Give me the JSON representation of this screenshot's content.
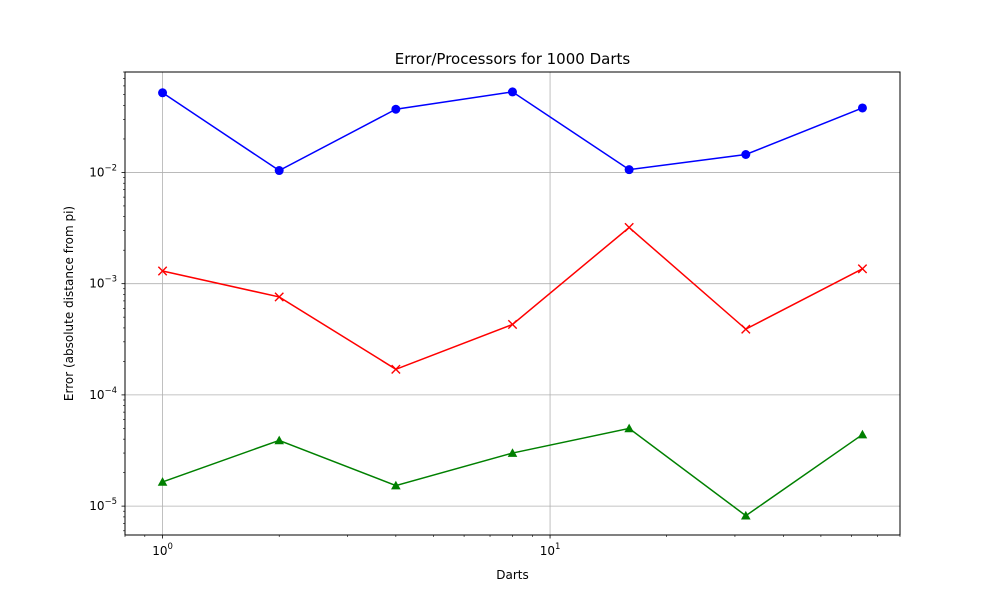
{
  "chart_data": {
    "type": "line",
    "title": "Error/Processors for 1000 Darts",
    "xlabel": "Darts",
    "ylabel": "Error (absolute distance from pi)",
    "xscale": "log",
    "yscale": "log",
    "xlim": [
      0.8,
      80
    ],
    "ylim": [
      5.5e-06,
      0.08
    ],
    "grid": true,
    "x": [
      1,
      2,
      4,
      8,
      16,
      32,
      64
    ],
    "x_ticks": [
      {
        "value": 1,
        "base": "10",
        "exp": "0"
      },
      {
        "value": 10,
        "base": "10",
        "exp": "1"
      }
    ],
    "y_ticks": [
      {
        "value": 1e-05,
        "base": "10",
        "exp": "−5"
      },
      {
        "value": 0.0001,
        "base": "10",
        "exp": "−4"
      },
      {
        "value": 0.001,
        "base": "10",
        "exp": "−3"
      },
      {
        "value": 0.01,
        "base": "10",
        "exp": "−2"
      }
    ],
    "series": [
      {
        "color": "#0000ff",
        "marker": "circle",
        "values": [
          0.052,
          0.0104,
          0.037,
          0.053,
          0.0106,
          0.0145,
          0.038
        ]
      },
      {
        "color": "#ff0000",
        "marker": "x",
        "values": [
          0.0013,
          0.00076,
          0.00017,
          0.00043,
          0.0032,
          0.00039,
          0.00136
        ]
      },
      {
        "color": "#008000",
        "marker": "triangle",
        "values": [
          1.65e-05,
          3.9e-05,
          1.53e-05,
          3e-05,
          5e-05,
          8.2e-06,
          4.4e-05
        ]
      }
    ]
  }
}
